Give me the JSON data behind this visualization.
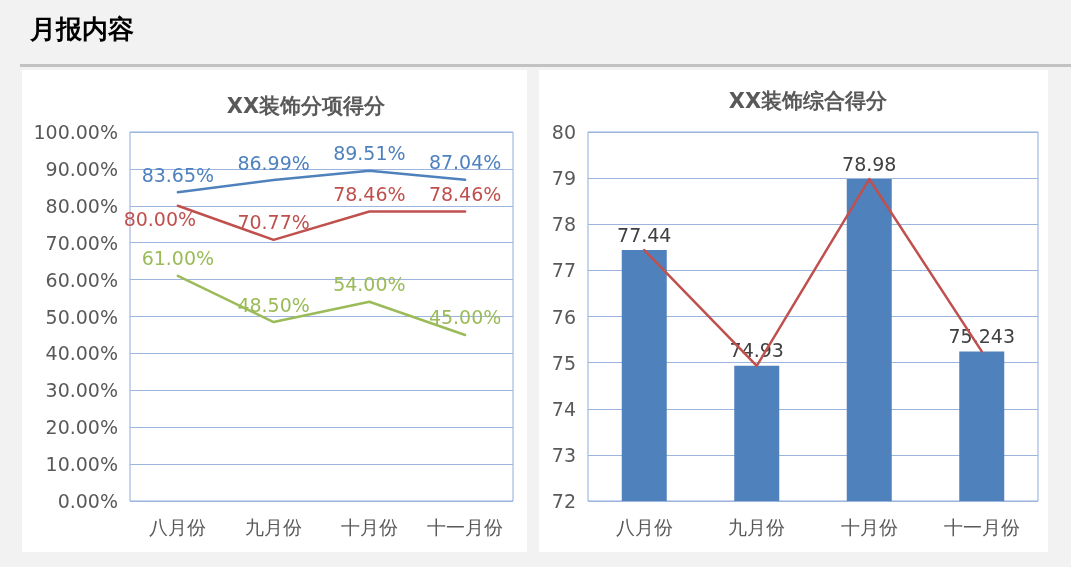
{
  "chart_data": [
    {
      "type": "line",
      "title": "XX装饰分项得分",
      "annotations": [
        "月报内容"
      ],
      "categories": [
        "八月份",
        "九月份",
        "十月份",
        "十一月份"
      ],
      "series": [
        {
          "color": "#4f81bd",
          "values": [
            83.65,
            86.99,
            89.51,
            87.04
          ],
          "value_labels": [
            "83.65%",
            "86.99%",
            "89.51%",
            "87.04%"
          ]
        },
        {
          "color": "#c0504d",
          "values": [
            80.0,
            70.77,
            78.46,
            78.46
          ],
          "value_labels": [
            "80.00%",
            "70.77%",
            "78.46%",
            "78.46%"
          ]
        },
        {
          "color": "#9bbb59",
          "values": [
            61.0,
            48.5,
            54.0,
            45.0
          ],
          "value_labels": [
            "61.00%",
            "48.50%",
            "54.00%",
            "45.00%"
          ]
        }
      ],
      "ylim": [
        0,
        100
      ],
      "yticks": [
        {
          "value": 0,
          "label": "0.00%"
        },
        {
          "value": 10,
          "label": "10.00%"
        },
        {
          "value": 20,
          "label": "20.00%"
        },
        {
          "value": 30,
          "label": "30.00%"
        },
        {
          "value": 40,
          "label": "40.00%"
        },
        {
          "value": 50,
          "label": "50.00%"
        },
        {
          "value": 60,
          "label": "60.00%"
        },
        {
          "value": 70,
          "label": "70.00%"
        },
        {
          "value": 80,
          "label": "80.00%"
        },
        {
          "value": 90,
          "label": "90.00%"
        },
        {
          "value": 100,
          "label": "100.00%"
        }
      ],
      "grid": "y",
      "marker": "none",
      "line_style": "solid"
    },
    {
      "type": "bar",
      "title": "XX装饰综合得分",
      "categories": [
        "八月份",
        "九月份",
        "十月份",
        "十一月份"
      ],
      "series": [
        {
          "color": "#4f81bd",
          "values": [
            77.44,
            74.93,
            78.98,
            75.243
          ],
          "value_labels": [
            "77.44",
            "74.93",
            "78.98",
            "75.243"
          ]
        },
        {
          "type": "line",
          "color": "#c0504d",
          "values": [
            77.44,
            74.93,
            78.98,
            75.243
          ]
        }
      ],
      "ylim": [
        72,
        80
      ],
      "yticks": [
        72,
        73,
        74,
        75,
        76,
        77,
        78,
        79,
        80
      ],
      "grid": "y",
      "marker": "none",
      "line_style": "solid"
    }
  ]
}
